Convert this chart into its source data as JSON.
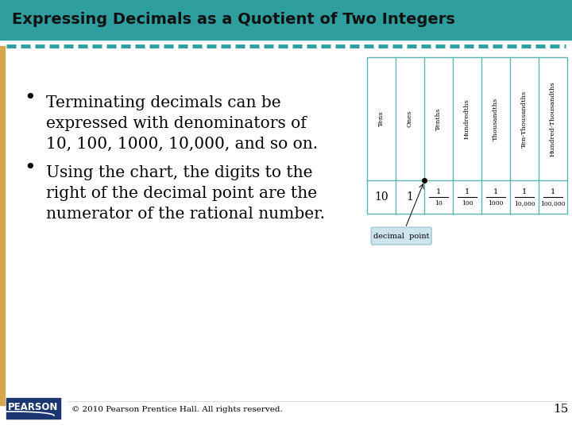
{
  "title": "Expressing Decimals as a Quotient of Two Integers",
  "title_bg": "#2e9e9e",
  "title_text_color": "#111111",
  "bg_color": "#ffffff",
  "dash_color": "#2e9e9e",
  "left_stripe_color": "#d4a84b",
  "bullet1_lines": [
    "Terminating decimals can be",
    "expressed with denominators of",
    "10, 100, 1000, 10,000, and so on."
  ],
  "bullet2_lines": [
    "Using the chart, the digits to the",
    "right of the decimal point are the",
    "numerator of the rational number."
  ],
  "table_headers": [
    "Tens",
    "Ones",
    "Tenths",
    "Hundredths",
    "Thousandths",
    "Ten-Thousandths",
    "Hundred-Thousandths"
  ],
  "table_values": [
    "10",
    "1",
    "1/10",
    "1/100",
    "1/1000",
    "1/10,000",
    "1/100,000"
  ],
  "table_border_color": "#5ab5b5",
  "decimal_point_label": "decimal  point",
  "footer_text": "© 2010 Pearson Prentice Hall. All rights reserved.",
  "page_number": "15",
  "pearson_bg": "#1a3570",
  "pearson_text": "PEARSON"
}
